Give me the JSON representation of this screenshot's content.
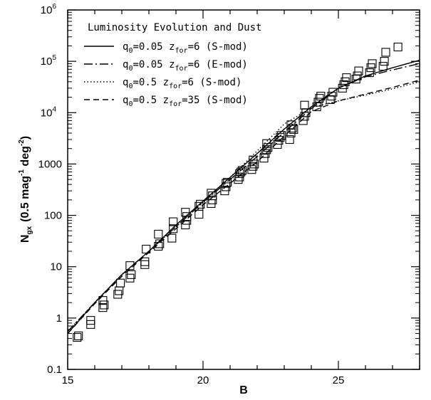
{
  "chart_data": {
    "type": "scatter",
    "title": "",
    "xlabel": "B",
    "ylabel": "N_gx (0.5 mag^-1 deg^-2)",
    "ylabel_parts": {
      "main": "N",
      "sub": "gx",
      "rest": "(0.5 mag",
      "exp1": "-1",
      "mid": " deg",
      "exp2": "-2",
      "end": ")"
    },
    "xlim": [
      15,
      28
    ],
    "ylim_log10": [
      -1,
      6
    ],
    "log_y": true,
    "grid": false,
    "legend_title": "Luminosity Evolution and Dust",
    "legend_position": "top-left",
    "x_ticks": [
      15,
      20,
      25
    ],
    "x_tick_labels": [
      "15",
      "20",
      "25"
    ],
    "y_ticks_log10": [
      -1,
      0,
      1,
      2,
      3,
      4,
      5
    ],
    "y_tick_labels": [
      "0.1",
      "1",
      "10",
      "100",
      "1000"
    ],
    "y_tick_labels_sci": [
      {
        "value": 4,
        "base": "10",
        "exp": "4"
      },
      {
        "value": 5,
        "base": "10",
        "exp": "5"
      },
      {
        "value": 6,
        "base": "10",
        "exp": "6"
      }
    ],
    "series": [
      {
        "kind": "line",
        "dash": "solid",
        "legend": {
          "q": "q",
          "qsub": "0",
          "qval": "=0.05",
          "z": "z",
          "zsub": "for",
          "zval": "=6",
          "mod": "(S-mod)"
        },
        "x": [
          15,
          16,
          17,
          18,
          19,
          20,
          21,
          22,
          23,
          24,
          25,
          26,
          27,
          28
        ],
        "y": [
          0.5,
          2.0,
          7.0,
          20,
          65,
          190,
          550,
          1600,
          4800,
          13000,
          30000,
          52000,
          75000,
          105000
        ]
      },
      {
        "kind": "line",
        "dash": "dashdot",
        "legend": {
          "q": "q",
          "qsub": "0",
          "qval": "=0.05",
          "z": "z",
          "zsub": "for",
          "zval": "=6",
          "mod": "(E-mod)"
        },
        "x": [
          15,
          16,
          17,
          18,
          19,
          20,
          21,
          22,
          23,
          24,
          25,
          26,
          27,
          28
        ],
        "y": [
          0.55,
          2.0,
          7.0,
          20,
          60,
          180,
          500,
          1400,
          4200,
          12000,
          30000,
          50000,
          68000,
          90000
        ]
      },
      {
        "kind": "line",
        "dash": "dotted",
        "legend": {
          "q": "q",
          "qsub": "0",
          "qval": "=0.5",
          "z": "z",
          "zsub": "for",
          "zval": "=6",
          "mod": "(S-mod)"
        },
        "x": [
          15,
          16,
          17,
          18,
          19,
          20,
          21,
          22,
          23,
          24,
          25,
          26,
          27,
          28
        ],
        "y": [
          0.55,
          2.0,
          7.0,
          20,
          60,
          180,
          550,
          1800,
          6000,
          12500,
          17000,
          22000,
          29000,
          40000
        ]
      },
      {
        "kind": "line",
        "dash": "dashed",
        "legend": {
          "q": "q",
          "qsub": "0",
          "qval": "=0.5",
          "z": "z",
          "zsub": "for",
          "zval": "=35",
          "mod": "(S-mod)"
        },
        "x": [
          15,
          16,
          17,
          18,
          19,
          20,
          21,
          22,
          23,
          24,
          25,
          26,
          27,
          28
        ],
        "y": [
          0.5,
          1.9,
          6.5,
          19,
          55,
          160,
          420,
          1100,
          3500,
          10500,
          17000,
          23000,
          31000,
          43000
        ]
      },
      {
        "kind": "points",
        "marker": "open-square",
        "points": [
          [
            15.35,
            0.42
          ],
          [
            15.4,
            0.45
          ],
          [
            15.85,
            0.75
          ],
          [
            15.85,
            0.9
          ],
          [
            16.3,
            1.6
          ],
          [
            16.35,
            1.8
          ],
          [
            16.3,
            2.2
          ],
          [
            16.85,
            2.9
          ],
          [
            16.9,
            3.4
          ],
          [
            16.95,
            4.8
          ],
          [
            17.3,
            6.0
          ],
          [
            17.35,
            7.0
          ],
          [
            17.3,
            10.5
          ],
          [
            17.85,
            11.0
          ],
          [
            17.85,
            12.5
          ],
          [
            17.9,
            22
          ],
          [
            18.35,
            25
          ],
          [
            18.4,
            28
          ],
          [
            18.35,
            43
          ],
          [
            18.85,
            36
          ],
          [
            18.9,
            55
          ],
          [
            18.9,
            75
          ],
          [
            19.35,
            65
          ],
          [
            19.4,
            80
          ],
          [
            19.4,
            95
          ],
          [
            19.35,
            115
          ],
          [
            19.85,
            105
          ],
          [
            19.85,
            150
          ],
          [
            19.9,
            165
          ],
          [
            20.3,
            170
          ],
          [
            20.35,
            200
          ],
          [
            20.35,
            240
          ],
          [
            20.3,
            270
          ],
          [
            20.8,
            300
          ],
          [
            20.85,
            360
          ],
          [
            20.85,
            420
          ],
          [
            20.9,
            440
          ],
          [
            21.3,
            500
          ],
          [
            21.35,
            560
          ],
          [
            21.35,
            650
          ],
          [
            21.4,
            700
          ],
          [
            21.45,
            750
          ],
          [
            21.8,
            780
          ],
          [
            21.85,
            900
          ],
          [
            21.9,
            1000
          ],
          [
            21.85,
            1200
          ],
          [
            22.25,
            1300
          ],
          [
            22.3,
            1600
          ],
          [
            22.35,
            1900
          ],
          [
            22.4,
            2100
          ],
          [
            22.35,
            2500
          ],
          [
            22.75,
            2400
          ],
          [
            22.8,
            2900
          ],
          [
            22.85,
            3300
          ],
          [
            22.9,
            3600
          ],
          [
            23.2,
            3000
          ],
          [
            23.25,
            4000
          ],
          [
            23.3,
            5000
          ],
          [
            23.25,
            5800
          ],
          [
            23.35,
            4700
          ],
          [
            23.7,
            7000
          ],
          [
            23.75,
            8500
          ],
          [
            23.8,
            10000
          ],
          [
            23.75,
            14000
          ],
          [
            24.2,
            13000
          ],
          [
            24.25,
            16000
          ],
          [
            24.3,
            19000
          ],
          [
            24.35,
            21000
          ],
          [
            24.7,
            18000
          ],
          [
            24.75,
            21000
          ],
          [
            24.8,
            25000
          ],
          [
            25.15,
            30000
          ],
          [
            25.2,
            35000
          ],
          [
            25.25,
            40000
          ],
          [
            25.3,
            48000
          ],
          [
            25.65,
            45000
          ],
          [
            25.7,
            52000
          ],
          [
            25.75,
            65000
          ],
          [
            26.15,
            60000
          ],
          [
            26.2,
            75000
          ],
          [
            26.25,
            90000
          ],
          [
            26.65,
            80000
          ],
          [
            26.7,
            100000
          ],
          [
            26.75,
            150000
          ],
          [
            27.2,
            190000
          ]
        ]
      }
    ]
  }
}
